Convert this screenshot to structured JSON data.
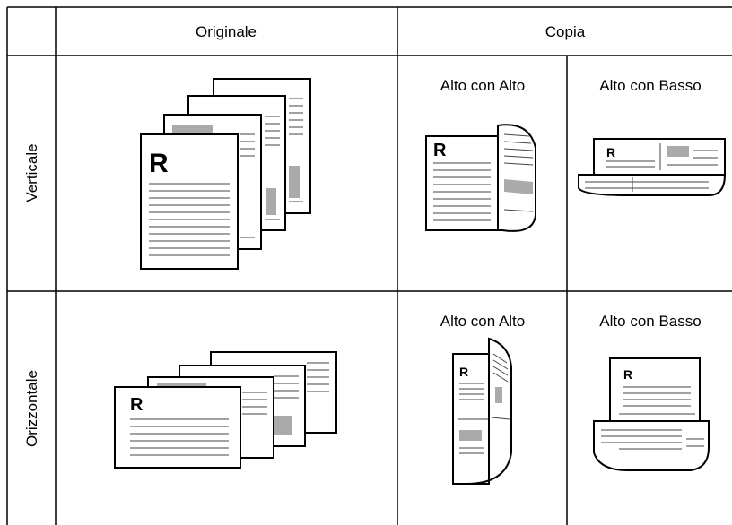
{
  "table": {
    "header": {
      "original": "Originale",
      "copy": "Copia"
    },
    "rows": [
      {
        "label": "Verticale",
        "original": {
          "letter": "R"
        },
        "copies": [
          {
            "caption": "Alto con Alto",
            "letter": "R"
          },
          {
            "caption": "Alto con Basso",
            "letter": "R"
          }
        ]
      },
      {
        "label": "Orizzontale",
        "original": {
          "letter": "R"
        },
        "copies": [
          {
            "caption": "Alto con Alto",
            "letter": "R"
          },
          {
            "caption": "Alto con Basso",
            "letter": "R"
          }
        ]
      }
    ]
  }
}
